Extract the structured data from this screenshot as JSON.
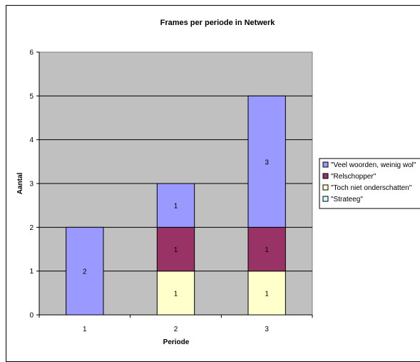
{
  "chart_data": {
    "type": "bar",
    "stacked": true,
    "title": "Frames per periode in Netwerk",
    "xlabel": "Periode",
    "ylabel": "Aantal",
    "categories": [
      "1",
      "2",
      "3"
    ],
    "ylim": [
      0,
      6
    ],
    "yticks": [
      "0",
      "1",
      "2",
      "3",
      "4",
      "5",
      "6"
    ],
    "grid": true,
    "legend_position": "right",
    "series": [
      {
        "name": "\"Strateeg\"",
        "color": "#ccffff",
        "values": [
          0,
          0,
          0
        ],
        "labels": [
          "",
          "",
          ""
        ]
      },
      {
        "name": "\"Toch niet onderschatten\"",
        "color": "#ffffcc",
        "values": [
          0,
          1,
          1
        ],
        "labels": [
          "",
          "1",
          "1"
        ]
      },
      {
        "name": "\"Relschopper\"",
        "color": "#993366",
        "values": [
          0,
          1,
          1
        ],
        "labels": [
          "",
          "1",
          "1"
        ]
      },
      {
        "name": "\"Veel woorden, weinig wol\"",
        "color": "#9999ff",
        "values": [
          2,
          1,
          3
        ],
        "labels": [
          "2",
          "1",
          "3"
        ]
      }
    ],
    "legend_order": [
      3,
      2,
      1,
      0
    ]
  }
}
